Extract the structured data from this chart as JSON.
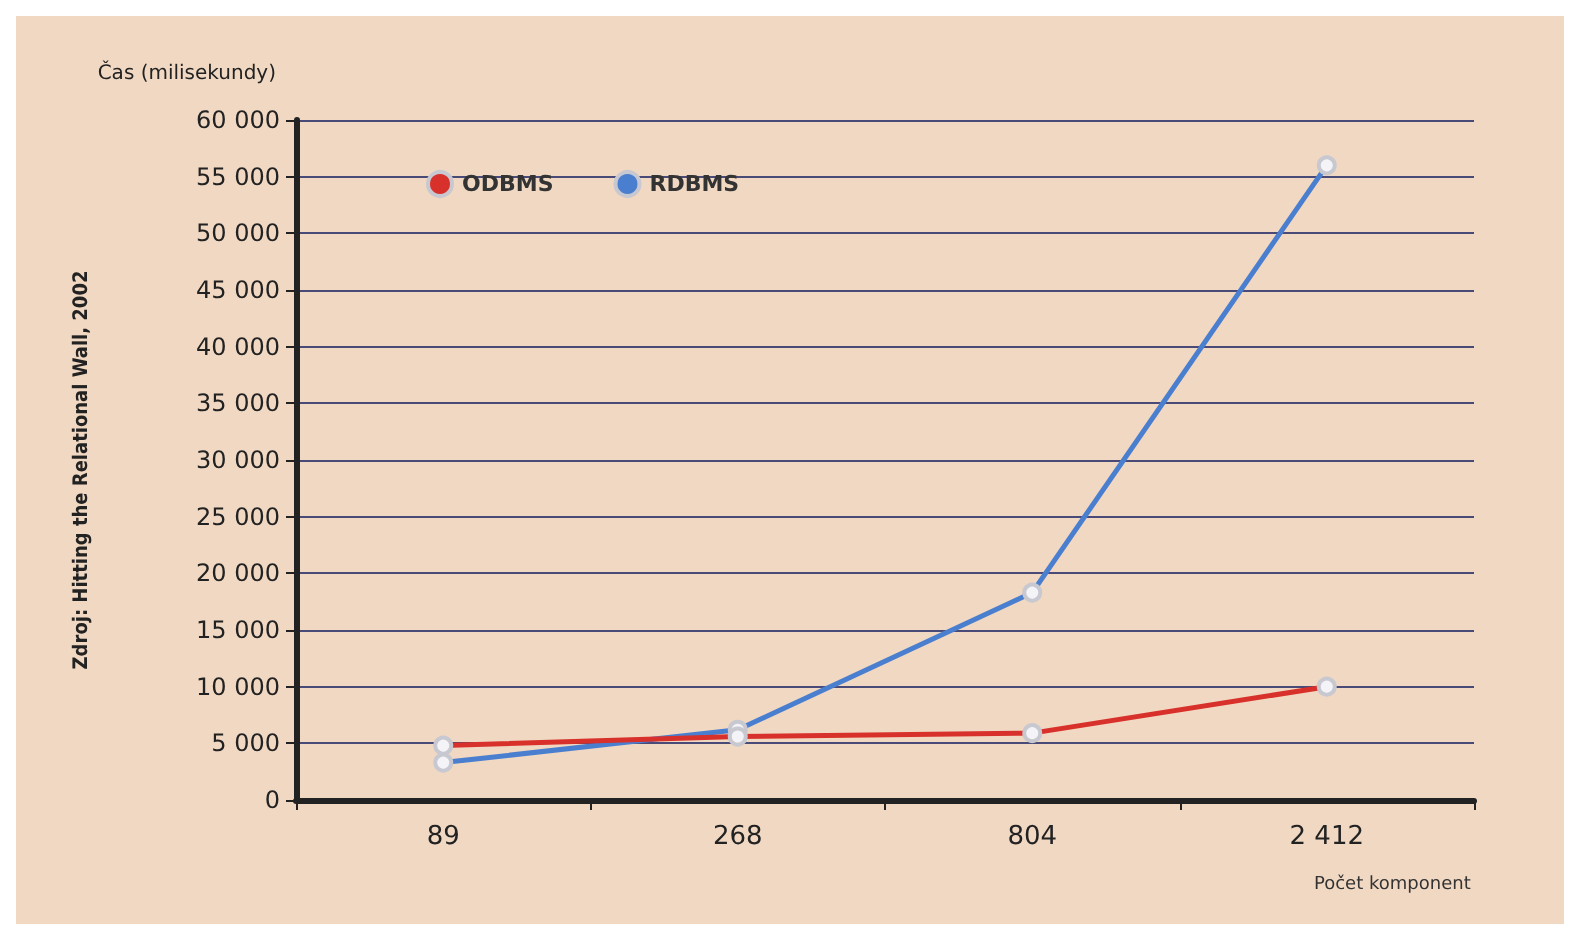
{
  "chart_data": {
    "type": "line",
    "ylabel": "Čas (milisekundy)",
    "xlabel": "Počet komponent",
    "annotations": [
      "Zdroj: Hitting the Relational Wall, 2002"
    ],
    "categories": [
      "89",
      "268",
      "804",
      "2 412"
    ],
    "series": [
      {
        "name": "ODBMS",
        "color": "#d8302a",
        "values": [
          4800,
          5600,
          5900,
          10000
        ]
      },
      {
        "name": "RDBMS",
        "color": "#4a7fd0",
        "values": [
          3300,
          6200,
          18300,
          56000
        ]
      }
    ],
    "ylim": [
      0,
      60000
    ],
    "yticks": [
      0,
      {
        "value": 5000,
        "label": "5 000"
      },
      {
        "value": 10000,
        "label": "10 000"
      },
      {
        "value": 15000,
        "label": "15 000"
      },
      {
        "value": 20000,
        "label": "20 000"
      },
      {
        "value": 25000,
        "label": "25 000"
      },
      {
        "value": 30000,
        "label": "30 000"
      },
      {
        "value": 35000,
        "label": "35 000"
      },
      {
        "value": 40000,
        "label": "40 000"
      },
      {
        "value": 45000,
        "label": "45 000"
      },
      {
        "value": 50000,
        "label": "50 000"
      },
      {
        "value": 55000,
        "label": "55 000"
      },
      {
        "value": 60000,
        "label": "60 000"
      }
    ],
    "grid": "y",
    "legend": "top left",
    "marker": "circle",
    "line_style": "solid"
  }
}
